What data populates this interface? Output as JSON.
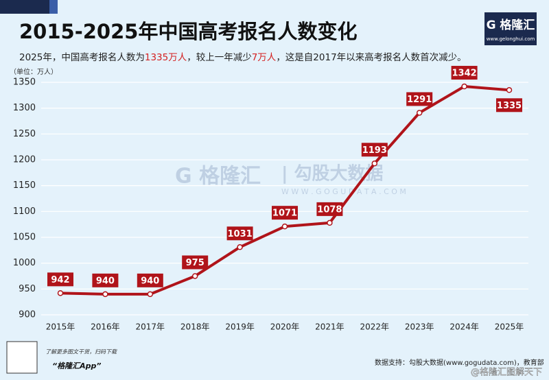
{
  "chart_data": {
    "type": "line",
    "title": "2015-2025年中国高考报名人数变化",
    "subtitle_parts": [
      {
        "text": "2025年，中国高考报名人数为",
        "color": "#222222"
      },
      {
        "text": "1335万人",
        "color": "#d42020"
      },
      {
        "text": "，较上一年减少",
        "color": "#222222"
      },
      {
        "text": "7万人",
        "color": "#d42020"
      },
      {
        "text": "，这是自2017年以来高考报名人数首次减少。",
        "color": "#222222"
      }
    ],
    "y_label": "（单位：万人）",
    "categories": [
      "2015年",
      "2016年",
      "2017年",
      "2018年",
      "2019年",
      "2020年",
      "2021年",
      "2022年",
      "2023年",
      "2024年",
      "2025年"
    ],
    "values": [
      942,
      940,
      940,
      975,
      1031,
      1071,
      1078,
      1193,
      1291,
      1342,
      1335
    ],
    "color": "#b0141a",
    "ylim": [
      890,
      1365
    ],
    "yticks": [
      900,
      950,
      1000,
      1050,
      1100,
      1150,
      1200,
      1250,
      1300,
      1350
    ],
    "grid": true
  },
  "logo": {
    "name": "G 格隆汇",
    "url": "www.gelonghui.com"
  },
  "watermark": {
    "left": "G 格隆汇",
    "right": "| 勾股大数据",
    "url": "W W W . G O G U D A T A . C O M"
  },
  "footer": {
    "download": "了解更多图文干货，扫码下载",
    "app": "“格隆汇App”",
    "source": "数据支持：勾股大数据(www.gogudata.com)，教育部",
    "weibo": "@格隆汇图解天下"
  }
}
